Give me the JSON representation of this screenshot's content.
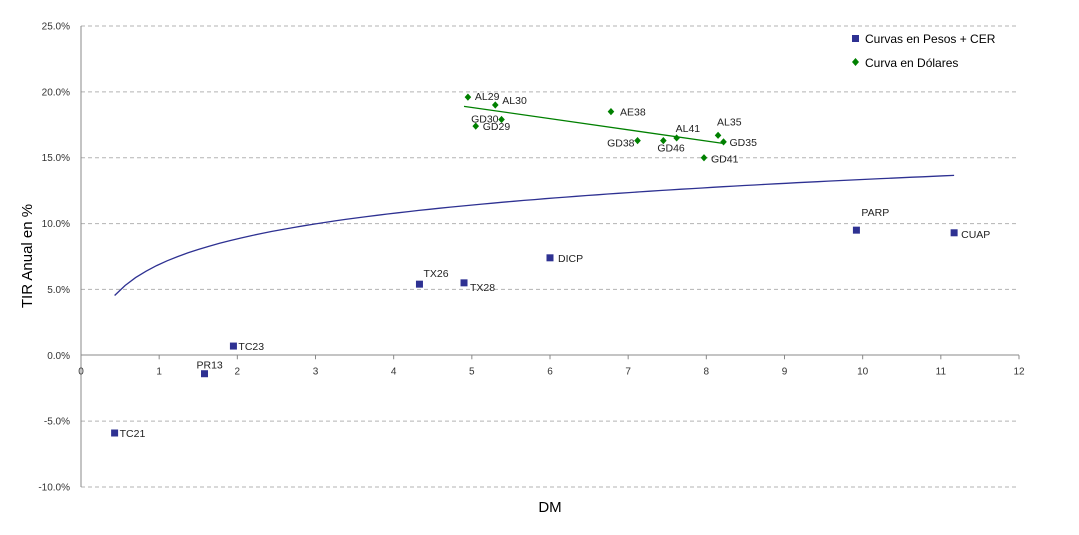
{
  "chart_data": {
    "type": "scatter",
    "xlabel": "DM",
    "ylabel": "TIR Anual en %",
    "xlim": [
      0,
      12
    ],
    "ylim": [
      -10,
      25
    ],
    "x_ticks": [
      0,
      1,
      2,
      3,
      4,
      5,
      6,
      7,
      8,
      9,
      10,
      11,
      12
    ],
    "y_ticks": [
      -10,
      -5,
      0,
      5,
      10,
      15,
      20,
      25
    ],
    "y_tick_labels": [
      "-10.0%",
      "-5.0%",
      "0.0%",
      "5.0%",
      "10.0%",
      "15.0%",
      "20.0%",
      "25.0%"
    ],
    "grid": "horizontal dashed",
    "legend_position": "top-right",
    "series": [
      {
        "name": "Curvas en Pesos + CER",
        "marker": "square",
        "color": "#2e3192",
        "points": [
          {
            "label": "TC21",
            "x": 0.43,
            "y": -5.9
          },
          {
            "label": "PR13",
            "x": 1.58,
            "y": -1.4
          },
          {
            "label": "TC23",
            "x": 1.95,
            "y": 0.7
          },
          {
            "label": "TX26",
            "x": 4.33,
            "y": 5.4
          },
          {
            "label": "TX28",
            "x": 4.9,
            "y": 5.5
          },
          {
            "label": "DICP",
            "x": 6.0,
            "y": 7.4
          },
          {
            "label": "PARP",
            "x": 9.92,
            "y": 9.5
          },
          {
            "label": "CUAP",
            "x": 11.17,
            "y": 9.3
          }
        ]
      },
      {
        "name": "Curva en Dólares",
        "marker": "diamond",
        "color": "#008000",
        "points": [
          {
            "label": "AL29",
            "x": 4.95,
            "y": 19.6
          },
          {
            "label": "AL30",
            "x": 5.3,
            "y": 19.0
          },
          {
            "label": "GD30",
            "x": 5.38,
            "y": 17.9
          },
          {
            "label": "GD29",
            "x": 5.05,
            "y": 17.4
          },
          {
            "label": "AE38",
            "x": 6.78,
            "y": 18.5
          },
          {
            "label": "GD38",
            "x": 7.12,
            "y": 16.3
          },
          {
            "label": "GD46",
            "x": 7.45,
            "y": 16.3
          },
          {
            "label": "AL41",
            "x": 7.62,
            "y": 16.5
          },
          {
            "label": "AL35",
            "x": 8.15,
            "y": 16.7
          },
          {
            "label": "GD35",
            "x": 8.22,
            "y": 16.2
          },
          {
            "label": "GD41",
            "x": 7.97,
            "y": 15.0
          }
        ]
      }
    ],
    "trendlines": [
      {
        "series": "Curvas en Pesos + CER",
        "kind": "logarithmic",
        "color": "#2e3192",
        "x_range": [
          0.43,
          11.17
        ],
        "a": 2.8,
        "b": 6.9
      },
      {
        "series": "Curva en Dólares",
        "kind": "linear",
        "color": "#008000",
        "x_range": [
          4.9,
          8.2
        ],
        "from_y": 18.9,
        "to_y": 16.1
      }
    ]
  }
}
